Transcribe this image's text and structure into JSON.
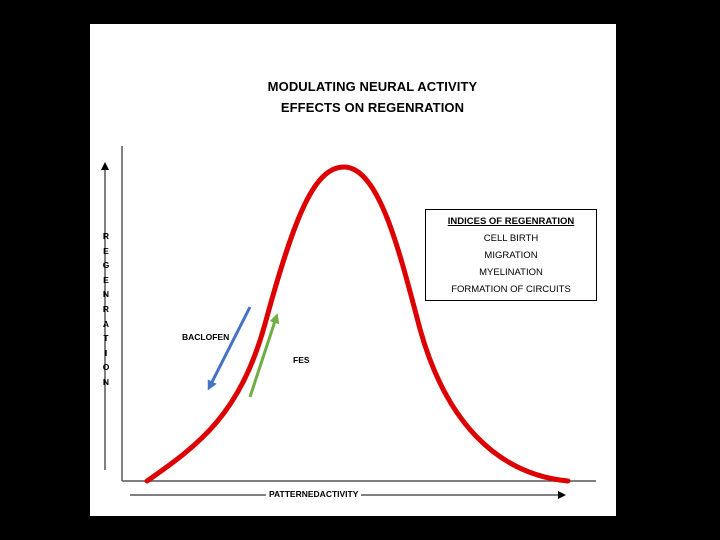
{
  "title_line1": "MODULATING NEURAL ACTIVITY",
  "title_line2": "EFFECTS ON REGENRATION",
  "legend": {
    "heading": "INDICES OF REGENRATION",
    "items": [
      "CELL BIRTH",
      "MIGRATION",
      "MYELINATION",
      "FORMATION OF CIRCUITS"
    ]
  },
  "y_axis_label": [
    "R",
    "E",
    "G",
    "E",
    "N",
    "R",
    "A",
    "T",
    "I",
    "O",
    "N"
  ],
  "x_axis_label": "PATTERNEDACTIVITY",
  "arrows": {
    "baclofen": "BACLOFEN",
    "fes": "FES"
  },
  "colors": {
    "curve": "#dd0000",
    "baclofen_arrow": "#4472c4",
    "fes_arrow": "#70ad47"
  }
}
